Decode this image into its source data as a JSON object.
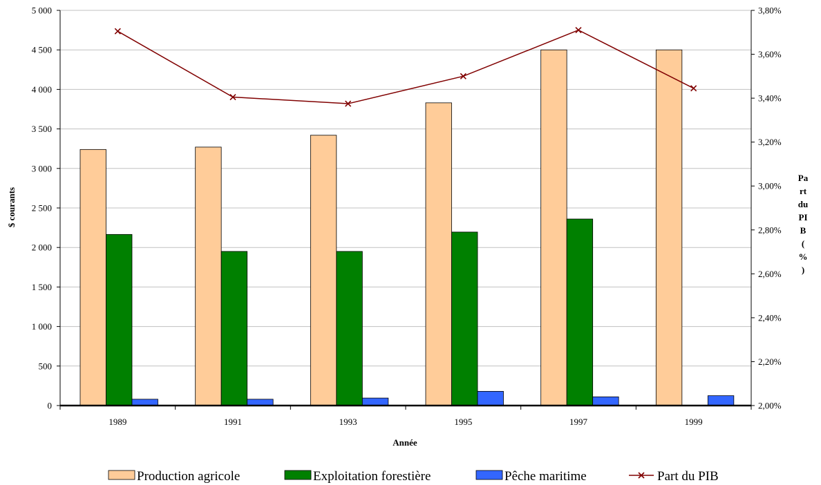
{
  "chart_data": {
    "type": "bar",
    "categories": [
      "1989",
      "1991",
      "1993",
      "1995",
      "1997",
      "1999"
    ],
    "xlabel": "Année",
    "ylabel": "$ courants",
    "y2label": "Part du PIB (%)",
    "ylim": [
      0,
      5000
    ],
    "y2lim": [
      2.0,
      3.8
    ],
    "y_ticks": [
      "0",
      "500",
      "1 000",
      "1 500",
      "2 000",
      "2 500",
      "3 000",
      "3 500",
      "4 000",
      "4 500",
      "5 000"
    ],
    "y2_ticks": [
      "2,00%",
      "2,20%",
      "2,40%",
      "2,60%",
      "2,80%",
      "3,00%",
      "3,20%",
      "3,40%",
      "3,60%",
      "3,80%"
    ],
    "grid": true,
    "legend_position": "bottom",
    "series": [
      {
        "name": "Production agricole",
        "type": "bar",
        "axis": "left",
        "color": "#FFCC99",
        "values": [
          3240,
          3270,
          3420,
          3830,
          4500,
          4500
        ]
      },
      {
        "name": "Exploitation forestière",
        "type": "bar",
        "axis": "left",
        "color": "#008000",
        "values": [
          2165,
          1950,
          1950,
          2195,
          2360,
          0
        ]
      },
      {
        "name": "Pêche maritime",
        "type": "bar",
        "axis": "left",
        "color": "#3366FF",
        "values": [
          80,
          80,
          95,
          180,
          110,
          125
        ]
      },
      {
        "name": "Part du PIB",
        "type": "line",
        "axis": "right",
        "color": "#800000",
        "values": [
          3.705,
          3.405,
          3.375,
          3.5,
          3.71,
          3.445
        ]
      }
    ]
  }
}
